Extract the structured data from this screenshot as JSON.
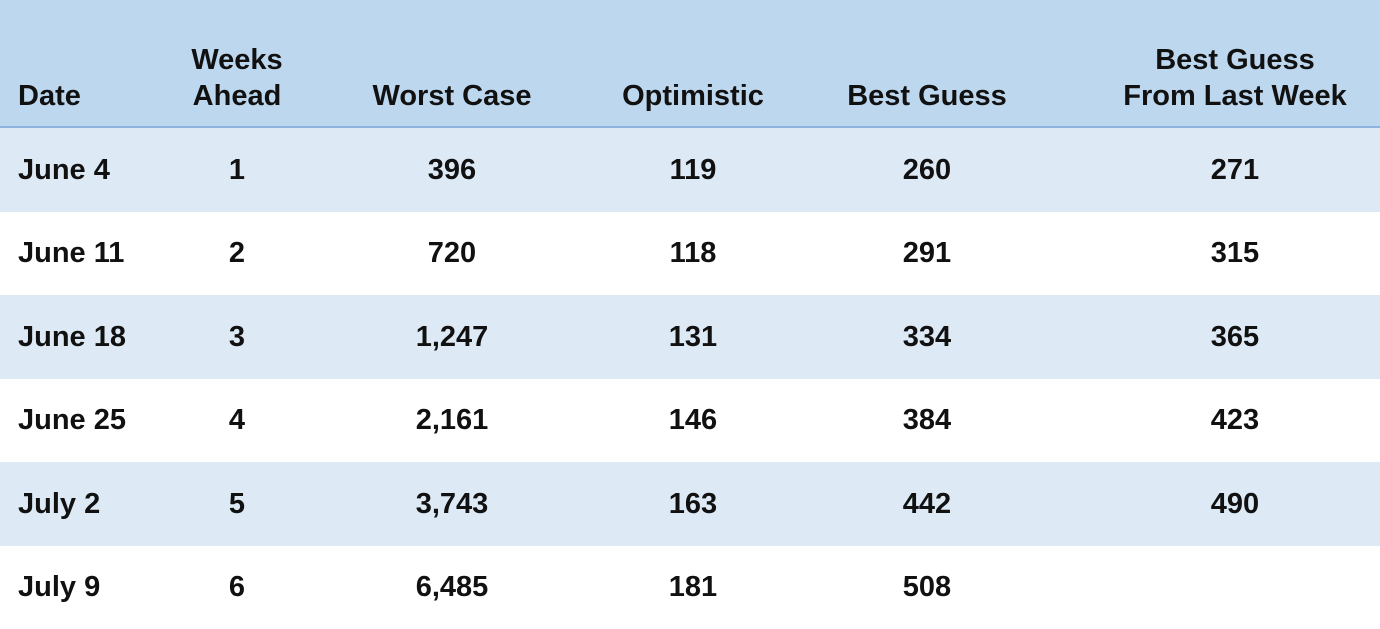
{
  "table": {
    "header": [
      [
        "Date"
      ],
      [
        "Weeks",
        "Ahead"
      ],
      [
        "Worst Case"
      ],
      [
        "Optimistic"
      ],
      [
        "Best Guess"
      ],
      [
        "Best Guess",
        "From Last Week"
      ]
    ],
    "rows": [
      [
        "June 4",
        "1",
        "396",
        "119",
        "260",
        "271"
      ],
      [
        "June 11",
        "2",
        "720",
        "118",
        "291",
        "315"
      ],
      [
        "June 18",
        "3",
        "1,247",
        "131",
        "334",
        "365"
      ],
      [
        "June 25",
        "4",
        "2,161",
        "146",
        "384",
        "423"
      ],
      [
        "July 2",
        "5",
        "3,743",
        "163",
        "442",
        "490"
      ],
      [
        "July 9",
        "6",
        "6,485",
        "181",
        "508"
      ]
    ]
  }
}
